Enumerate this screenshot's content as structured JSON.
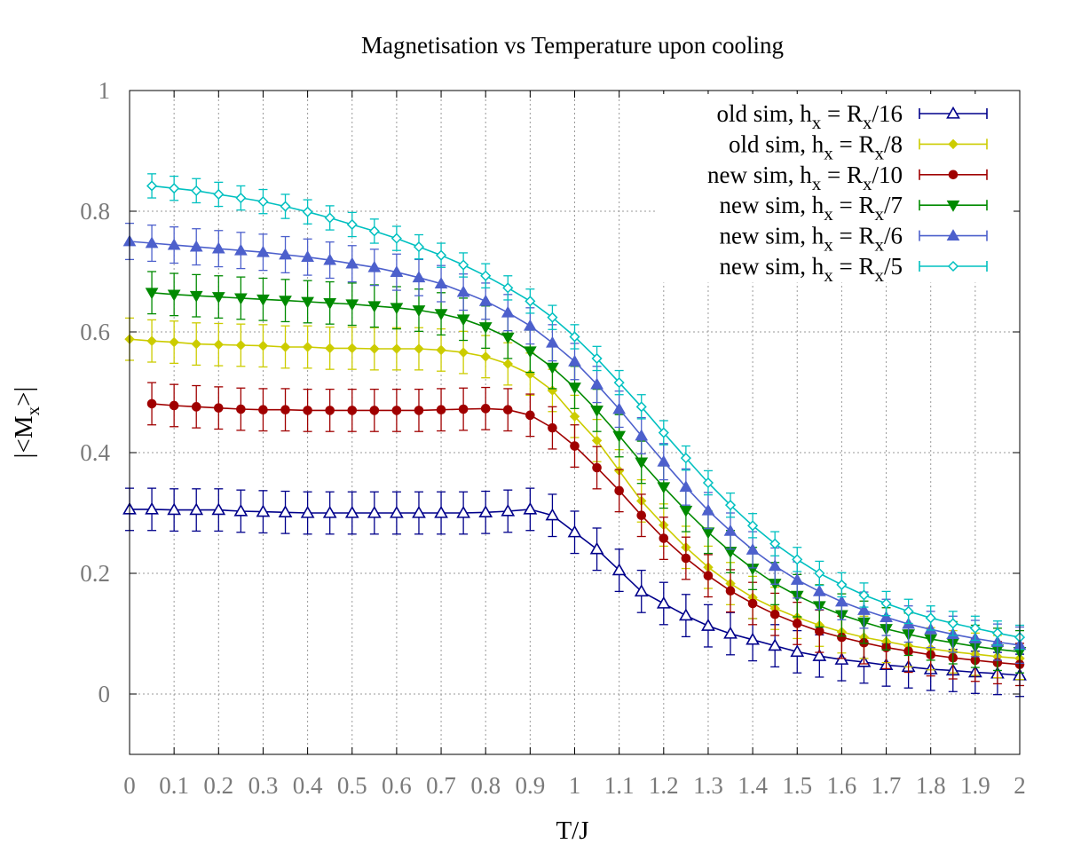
{
  "chart_data": {
    "type": "line",
    "title": "Magnetisation vs Temperature upon cooling",
    "xlabel": "T/J",
    "ylabel_parts": [
      "|<M",
      "x",
      ">|"
    ],
    "xlim": [
      0,
      2
    ],
    "ylim": [
      -0.1,
      1
    ],
    "xticks": [
      0,
      0.1,
      0.2,
      0.3,
      0.4,
      0.5,
      0.6,
      0.7,
      0.8,
      0.9,
      1,
      1.1,
      1.2,
      1.3,
      1.4,
      1.5,
      1.6,
      1.7,
      1.8,
      1.9,
      2
    ],
    "yticks": [
      0,
      0.2,
      0.4,
      0.6,
      0.8,
      1
    ],
    "grid": true,
    "legend_position": "top-right",
    "series": [
      {
        "legend_parts": [
          "old sim, h",
          "x",
          " = R",
          "x",
          "/16"
        ],
        "color": "#00008b",
        "marker": "triangle-open",
        "error": 0.035,
        "points": [
          [
            0.0,
            0.306
          ],
          [
            0.05,
            0.306
          ],
          [
            0.1,
            0.305
          ],
          [
            0.15,
            0.305
          ],
          [
            0.2,
            0.305
          ],
          [
            0.25,
            0.303
          ],
          [
            0.3,
            0.302
          ],
          [
            0.35,
            0.301
          ],
          [
            0.4,
            0.3
          ],
          [
            0.45,
            0.3
          ],
          [
            0.5,
            0.3
          ],
          [
            0.55,
            0.3
          ],
          [
            0.6,
            0.3
          ],
          [
            0.65,
            0.3
          ],
          [
            0.7,
            0.3
          ],
          [
            0.75,
            0.3
          ],
          [
            0.8,
            0.301
          ],
          [
            0.85,
            0.303
          ],
          [
            0.9,
            0.306
          ],
          [
            0.95,
            0.296
          ],
          [
            1.0,
            0.268
          ],
          [
            1.05,
            0.24
          ],
          [
            1.1,
            0.205
          ],
          [
            1.15,
            0.17
          ],
          [
            1.2,
            0.15
          ],
          [
            1.25,
            0.13
          ],
          [
            1.3,
            0.113
          ],
          [
            1.35,
            0.1
          ],
          [
            1.4,
            0.09
          ],
          [
            1.45,
            0.08
          ],
          [
            1.5,
            0.07
          ],
          [
            1.55,
            0.063
          ],
          [
            1.6,
            0.057
          ],
          [
            1.65,
            0.053
          ],
          [
            1.7,
            0.048
          ],
          [
            1.75,
            0.045
          ],
          [
            1.8,
            0.041
          ],
          [
            1.85,
            0.039
          ],
          [
            1.9,
            0.036
          ],
          [
            1.95,
            0.034
          ],
          [
            2.0,
            0.031
          ]
        ]
      },
      {
        "legend_parts": [
          "old sim, h",
          "x",
          " = R",
          "x",
          "/8"
        ],
        "color": "#cccc00",
        "marker": "diamond",
        "error": 0.035,
        "points": [
          [
            0.0,
            0.588
          ],
          [
            0.05,
            0.585
          ],
          [
            0.1,
            0.583
          ],
          [
            0.15,
            0.58
          ],
          [
            0.2,
            0.579
          ],
          [
            0.25,
            0.578
          ],
          [
            0.3,
            0.577
          ],
          [
            0.35,
            0.575
          ],
          [
            0.4,
            0.575
          ],
          [
            0.45,
            0.573
          ],
          [
            0.5,
            0.573
          ],
          [
            0.55,
            0.572
          ],
          [
            0.6,
            0.572
          ],
          [
            0.65,
            0.572
          ],
          [
            0.7,
            0.57
          ],
          [
            0.75,
            0.566
          ],
          [
            0.8,
            0.559
          ],
          [
            0.85,
            0.547
          ],
          [
            0.9,
            0.53
          ],
          [
            0.95,
            0.503
          ],
          [
            1.0,
            0.46
          ],
          [
            1.05,
            0.42
          ],
          [
            1.1,
            0.37
          ],
          [
            1.15,
            0.32
          ],
          [
            1.2,
            0.28
          ],
          [
            1.25,
            0.243
          ],
          [
            1.3,
            0.21
          ],
          [
            1.35,
            0.183
          ],
          [
            1.4,
            0.16
          ],
          [
            1.45,
            0.142
          ],
          [
            1.5,
            0.127
          ],
          [
            1.55,
            0.114
          ],
          [
            1.6,
            0.103
          ],
          [
            1.65,
            0.094
          ],
          [
            1.7,
            0.087
          ],
          [
            1.75,
            0.08
          ],
          [
            1.8,
            0.075
          ],
          [
            1.85,
            0.07
          ],
          [
            1.9,
            0.066
          ],
          [
            1.95,
            0.062
          ],
          [
            2.0,
            0.059
          ]
        ]
      },
      {
        "legend_parts": [
          "new sim, h",
          "x",
          " = R",
          "x",
          "/10"
        ],
        "color": "#a00000",
        "marker": "circle",
        "error": 0.035,
        "points": [
          [
            0.05,
            0.481
          ],
          [
            0.1,
            0.478
          ],
          [
            0.15,
            0.476
          ],
          [
            0.2,
            0.474
          ],
          [
            0.25,
            0.472
          ],
          [
            0.3,
            0.471
          ],
          [
            0.35,
            0.471
          ],
          [
            0.4,
            0.47
          ],
          [
            0.45,
            0.47
          ],
          [
            0.5,
            0.47
          ],
          [
            0.55,
            0.47
          ],
          [
            0.6,
            0.47
          ],
          [
            0.65,
            0.47
          ],
          [
            0.7,
            0.471
          ],
          [
            0.75,
            0.472
          ],
          [
            0.8,
            0.473
          ],
          [
            0.85,
            0.471
          ],
          [
            0.9,
            0.462
          ],
          [
            0.95,
            0.441
          ],
          [
            1.0,
            0.411
          ],
          [
            1.05,
            0.375
          ],
          [
            1.1,
            0.337
          ],
          [
            1.15,
            0.296
          ],
          [
            1.2,
            0.258
          ],
          [
            1.25,
            0.225
          ],
          [
            1.3,
            0.196
          ],
          [
            1.35,
            0.171
          ],
          [
            1.4,
            0.15
          ],
          [
            1.45,
            0.132
          ],
          [
            1.5,
            0.117
          ],
          [
            1.55,
            0.104
          ],
          [
            1.6,
            0.094
          ],
          [
            1.65,
            0.085
          ],
          [
            1.7,
            0.077
          ],
          [
            1.75,
            0.071
          ],
          [
            1.8,
            0.065
          ],
          [
            1.85,
            0.06
          ],
          [
            1.9,
            0.056
          ],
          [
            1.95,
            0.052
          ],
          [
            2.0,
            0.049
          ]
        ]
      },
      {
        "legend_parts": [
          "new sim, h",
          "x",
          " = R",
          "x",
          "/7"
        ],
        "color": "#008a00",
        "marker": "triangle-down",
        "error": 0.035,
        "points": [
          [
            0.05,
            0.665
          ],
          [
            0.1,
            0.662
          ],
          [
            0.15,
            0.66
          ],
          [
            0.2,
            0.658
          ],
          [
            0.25,
            0.656
          ],
          [
            0.3,
            0.654
          ],
          [
            0.35,
            0.652
          ],
          [
            0.4,
            0.65
          ],
          [
            0.45,
            0.648
          ],
          [
            0.5,
            0.646
          ],
          [
            0.55,
            0.643
          ],
          [
            0.6,
            0.64
          ],
          [
            0.65,
            0.636
          ],
          [
            0.7,
            0.63
          ],
          [
            0.75,
            0.621
          ],
          [
            0.8,
            0.608
          ],
          [
            0.85,
            0.591
          ],
          [
            0.9,
            0.568
          ],
          [
            0.95,
            0.541
          ],
          [
            1.0,
            0.508
          ],
          [
            1.05,
            0.47
          ],
          [
            1.1,
            0.428
          ],
          [
            1.15,
            0.384
          ],
          [
            1.2,
            0.343
          ],
          [
            1.25,
            0.304
          ],
          [
            1.3,
            0.268
          ],
          [
            1.35,
            0.236
          ],
          [
            1.4,
            0.208
          ],
          [
            1.45,
            0.183
          ],
          [
            1.5,
            0.163
          ],
          [
            1.55,
            0.146
          ],
          [
            1.6,
            0.131
          ],
          [
            1.65,
            0.119
          ],
          [
            1.7,
            0.108
          ],
          [
            1.75,
            0.099
          ],
          [
            1.8,
            0.091
          ],
          [
            1.85,
            0.085
          ],
          [
            1.9,
            0.079
          ],
          [
            1.95,
            0.074
          ],
          [
            2.0,
            0.07
          ]
        ]
      },
      {
        "legend_parts": [
          "new sim, h",
          "x",
          " = R",
          "x",
          "/6"
        ],
        "color": "#4d60cc",
        "marker": "triangle-up",
        "error": 0.03,
        "points": [
          [
            0.0,
            0.75
          ],
          [
            0.05,
            0.747
          ],
          [
            0.1,
            0.744
          ],
          [
            0.15,
            0.741
          ],
          [
            0.2,
            0.738
          ],
          [
            0.25,
            0.735
          ],
          [
            0.3,
            0.732
          ],
          [
            0.35,
            0.728
          ],
          [
            0.4,
            0.724
          ],
          [
            0.45,
            0.719
          ],
          [
            0.5,
            0.713
          ],
          [
            0.55,
            0.707
          ],
          [
            0.6,
            0.699
          ],
          [
            0.65,
            0.69
          ],
          [
            0.7,
            0.68
          ],
          [
            0.75,
            0.666
          ],
          [
            0.8,
            0.651
          ],
          [
            0.85,
            0.632
          ],
          [
            0.9,
            0.61
          ],
          [
            0.95,
            0.582
          ],
          [
            1.0,
            0.551
          ],
          [
            1.05,
            0.513
          ],
          [
            1.1,
            0.472
          ],
          [
            1.15,
            0.428
          ],
          [
            1.2,
            0.385
          ],
          [
            1.25,
            0.343
          ],
          [
            1.3,
            0.304
          ],
          [
            1.35,
            0.27
          ],
          [
            1.4,
            0.239
          ],
          [
            1.45,
            0.212
          ],
          [
            1.5,
            0.189
          ],
          [
            1.55,
            0.17
          ],
          [
            1.6,
            0.153
          ],
          [
            1.65,
            0.139
          ],
          [
            1.7,
            0.127
          ],
          [
            1.75,
            0.116
          ],
          [
            1.8,
            0.107
          ],
          [
            1.85,
            0.099
          ],
          [
            1.9,
            0.092
          ],
          [
            1.95,
            0.086
          ],
          [
            2.0,
            0.081
          ]
        ]
      },
      {
        "legend_parts": [
          "new sim, h",
          "x",
          " = R",
          "x",
          "/5"
        ],
        "color": "#00c0c0",
        "marker": "diamond-open",
        "error": 0.02,
        "points": [
          [
            0.05,
            0.842
          ],
          [
            0.1,
            0.838
          ],
          [
            0.15,
            0.834
          ],
          [
            0.2,
            0.828
          ],
          [
            0.25,
            0.822
          ],
          [
            0.3,
            0.816
          ],
          [
            0.35,
            0.808
          ],
          [
            0.4,
            0.799
          ],
          [
            0.45,
            0.789
          ],
          [
            0.5,
            0.778
          ],
          [
            0.55,
            0.767
          ],
          [
            0.6,
            0.755
          ],
          [
            0.65,
            0.741
          ],
          [
            0.7,
            0.727
          ],
          [
            0.75,
            0.711
          ],
          [
            0.8,
            0.693
          ],
          [
            0.85,
            0.673
          ],
          [
            0.9,
            0.651
          ],
          [
            0.95,
            0.624
          ],
          [
            1.0,
            0.592
          ],
          [
            1.05,
            0.556
          ],
          [
            1.1,
            0.516
          ],
          [
            1.15,
            0.476
          ],
          [
            1.2,
            0.433
          ],
          [
            1.25,
            0.391
          ],
          [
            1.3,
            0.35
          ],
          [
            1.35,
            0.313
          ],
          [
            1.4,
            0.279
          ],
          [
            1.45,
            0.249
          ],
          [
            1.5,
            0.223
          ],
          [
            1.55,
            0.2
          ],
          [
            1.6,
            0.181
          ],
          [
            1.65,
            0.164
          ],
          [
            1.7,
            0.15
          ],
          [
            1.75,
            0.137
          ],
          [
            1.8,
            0.126
          ],
          [
            1.85,
            0.117
          ],
          [
            1.9,
            0.109
          ],
          [
            1.95,
            0.101
          ],
          [
            2.0,
            0.094
          ]
        ]
      }
    ]
  }
}
